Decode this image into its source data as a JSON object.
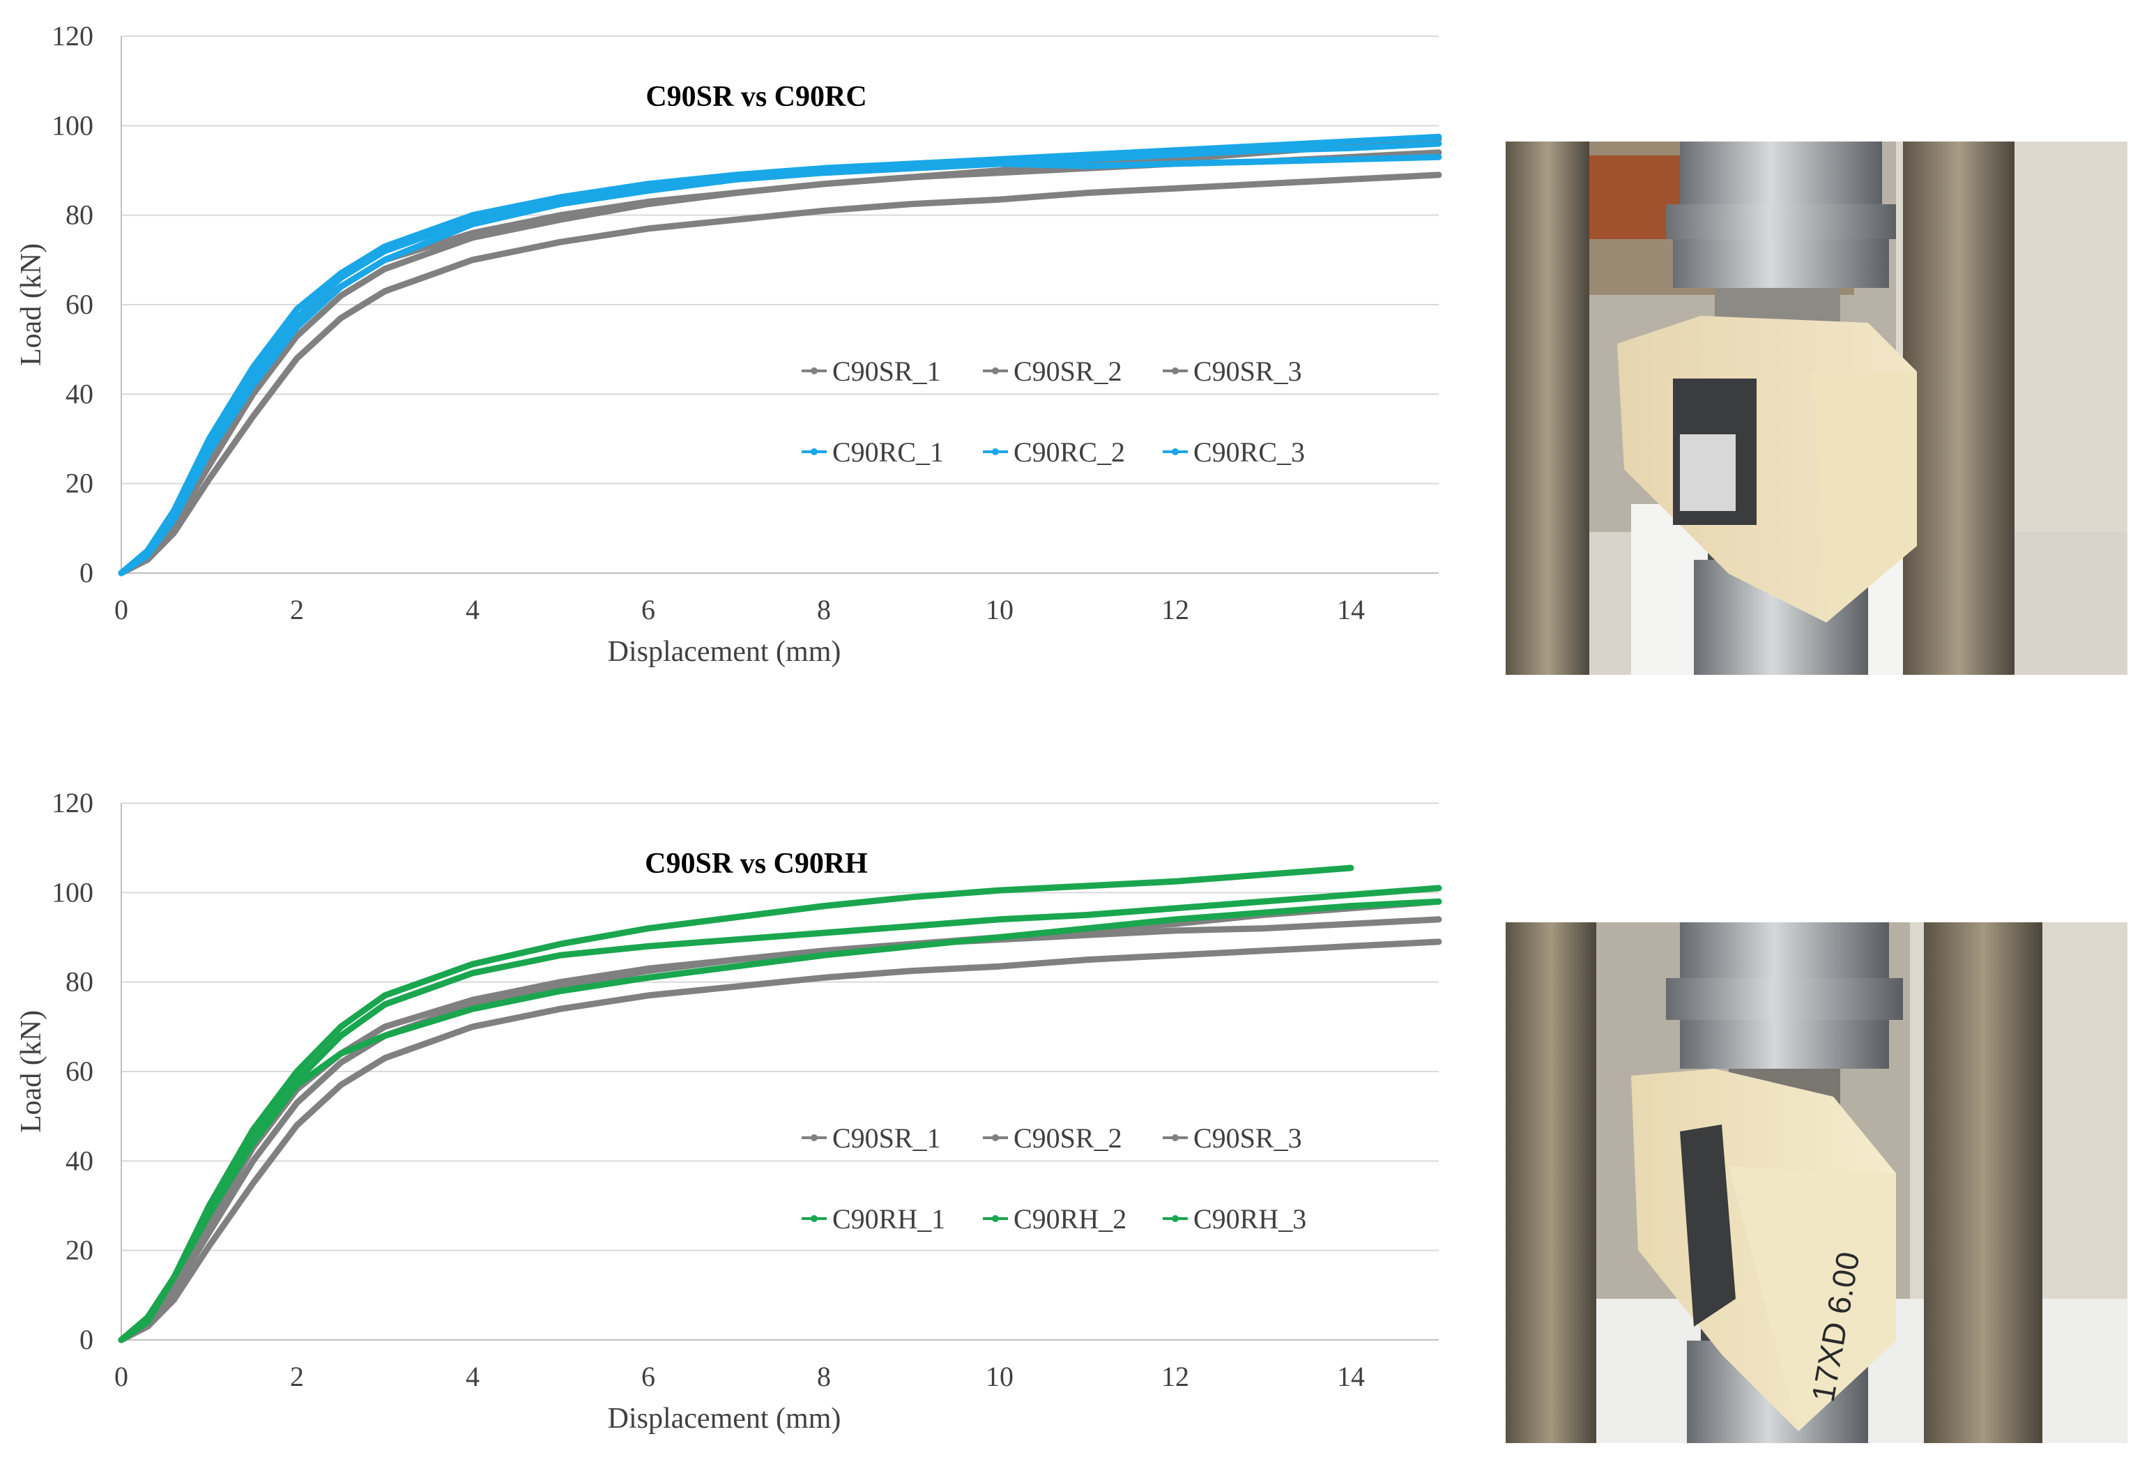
{
  "colors": {
    "gray": "#808080",
    "blue": "#1aa7e8",
    "green": "#1aa64e",
    "grid": "#d9d9d9",
    "axis": "#bfbfbf",
    "text": "#404040"
  },
  "chart_data": [
    {
      "type": "line",
      "title": "C90SR vs C90RC",
      "xlabel": "Displacement (mm)",
      "ylabel": "Load (kN)",
      "xlim": [
        0,
        15
      ],
      "ylim": [
        0,
        120
      ],
      "xticks": [
        "0",
        "2",
        "4",
        "6",
        "8",
        "10",
        "12",
        "14"
      ],
      "yticks": [
        "0",
        "20",
        "40",
        "60",
        "80",
        "100",
        "120"
      ],
      "grid": true,
      "legend_position": "center-right",
      "series": [
        {
          "name": "C90SR_1",
          "color": "gray",
          "x": [
            0,
            0.3,
            0.6,
            1,
            1.5,
            2,
            2.5,
            3,
            4,
            5,
            6,
            7,
            8,
            9,
            10,
            11,
            12,
            13,
            14,
            15
          ],
          "y": [
            0,
            3,
            9,
            21,
            35,
            48,
            57,
            63,
            70,
            74,
            77,
            79,
            81,
            82.5,
            83.5,
            85,
            86,
            87,
            88,
            89
          ]
        },
        {
          "name": "C90SR_2",
          "color": "gray",
          "x": [
            0,
            0.3,
            0.6,
            1,
            1.5,
            2,
            2.5,
            3,
            4,
            5,
            6,
            7,
            8,
            9,
            10,
            11,
            12,
            13,
            14,
            15
          ],
          "y": [
            0,
            4,
            12,
            26,
            43,
            56,
            64,
            70,
            76,
            80,
            83,
            85,
            87,
            88.5,
            89.5,
            90.5,
            91.5,
            92,
            93,
            94
          ]
        },
        {
          "name": "C90SR_3",
          "color": "gray",
          "x": [
            0,
            0.3,
            0.6,
            1,
            1.5,
            2,
            2.5,
            3,
            4,
            5,
            6,
            7,
            8,
            9,
            10,
            11,
            12,
            13,
            14,
            15
          ],
          "y": [
            0,
            4,
            11,
            24,
            40,
            53,
            62,
            68,
            75,
            79,
            82.5,
            85,
            87,
            88.5,
            90,
            91.5,
            92.5,
            94,
            95.5,
            97
          ]
        },
        {
          "name": "C90RC_1",
          "color": "blue",
          "x": [
            0,
            0.3,
            0.6,
            1,
            1.5,
            2,
            2.5,
            3,
            4,
            5,
            6,
            7,
            8,
            9,
            10,
            11,
            12,
            13,
            14,
            15
          ],
          "y": [
            0,
            5,
            14,
            30,
            46,
            59,
            67,
            73,
            80,
            84,
            87,
            89,
            90.5,
            91.5,
            92.5,
            93.5,
            94.5,
            95.5,
            96.5,
            97.5
          ]
        },
        {
          "name": "C90RC_2",
          "color": "blue",
          "x": [
            0,
            0.3,
            0.6,
            1,
            1.5,
            2,
            2.5,
            3,
            4,
            5,
            6,
            7,
            8,
            9,
            10,
            11,
            12,
            13,
            14,
            15
          ],
          "y": [
            0,
            4,
            13,
            28,
            44,
            57,
            66,
            72,
            79,
            83,
            86,
            88,
            89.5,
            90.5,
            91.5,
            91,
            91.5,
            92,
            92.5,
            93
          ]
        },
        {
          "name": "C90RC_3",
          "color": "blue",
          "x": [
            0,
            0.3,
            0.6,
            1,
            1.5,
            2,
            2.5,
            3,
            4,
            5,
            6,
            7,
            8,
            9,
            10,
            11,
            12,
            13,
            14,
            15
          ],
          "y": [
            0,
            4,
            12,
            27,
            42,
            55,
            64,
            70,
            78,
            82.5,
            85.5,
            88,
            89.5,
            90.5,
            91.5,
            92.5,
            93.5,
            94.5,
            95,
            96
          ]
        }
      ]
    },
    {
      "type": "line",
      "title": "C90SR vs C90RH",
      "xlabel": "Displacement (mm)",
      "ylabel": "Load (kN)",
      "xlim": [
        0,
        15
      ],
      "ylim": [
        0,
        120
      ],
      "xticks": [
        "0",
        "2",
        "4",
        "6",
        "8",
        "10",
        "12",
        "14"
      ],
      "yticks": [
        "0",
        "20",
        "40",
        "60",
        "80",
        "100",
        "120"
      ],
      "grid": true,
      "legend_position": "center-right",
      "series": [
        {
          "name": "C90SR_1",
          "color": "gray",
          "x": [
            0,
            0.3,
            0.6,
            1,
            1.5,
            2,
            2.5,
            3,
            4,
            5,
            6,
            7,
            8,
            9,
            10,
            11,
            12,
            13,
            14,
            15
          ],
          "y": [
            0,
            3,
            9,
            21,
            35,
            48,
            57,
            63,
            70,
            74,
            77,
            79,
            81,
            82.5,
            83.5,
            85,
            86,
            87,
            88,
            89
          ]
        },
        {
          "name": "C90SR_2",
          "color": "gray",
          "x": [
            0,
            0.3,
            0.6,
            1,
            1.5,
            2,
            2.5,
            3,
            4,
            5,
            6,
            7,
            8,
            9,
            10,
            11,
            12,
            13,
            14,
            15
          ],
          "y": [
            0,
            4,
            12,
            26,
            43,
            56,
            64,
            70,
            76,
            80,
            83,
            85,
            87,
            88.5,
            89.5,
            90.5,
            91.5,
            92,
            93,
            94
          ]
        },
        {
          "name": "C90SR_3",
          "color": "gray",
          "x": [
            0,
            0.3,
            0.6,
            1,
            1.5,
            2,
            2.5,
            3,
            4,
            5,
            6,
            7,
            8,
            9,
            10,
            11,
            12,
            13,
            14,
            15
          ],
          "y": [
            0,
            4,
            11,
            24,
            40,
            53,
            62,
            68,
            75,
            79,
            82.5,
            85,
            87,
            88.5,
            90,
            91.5,
            93,
            95,
            96.5,
            98
          ]
        },
        {
          "name": "C90RH_1",
          "color": "green",
          "x": [
            0,
            0.3,
            0.6,
            1,
            1.5,
            2,
            2.5,
            3,
            4,
            5,
            6,
            7,
            8,
            9,
            10,
            11,
            12,
            13,
            14
          ],
          "y": [
            0,
            5,
            14,
            30,
            47,
            60,
            70,
            77,
            84,
            88.5,
            92,
            94.5,
            97,
            99,
            100.5,
            101.5,
            102.5,
            104,
            105.5
          ]
        },
        {
          "name": "C90RH_2",
          "color": "green",
          "x": [
            0,
            0.3,
            0.6,
            1,
            1.5,
            2,
            2.5,
            3,
            4,
            5,
            6,
            7,
            8,
            9,
            10,
            11,
            12,
            13,
            14,
            15
          ],
          "y": [
            0,
            5,
            14,
            29,
            45,
            58,
            68,
            75,
            82,
            86,
            88,
            89.5,
            91,
            92.5,
            94,
            95,
            96.5,
            98,
            99.5,
            101
          ]
        },
        {
          "name": "C90RH_3",
          "color": "green",
          "x": [
            0,
            0.3,
            0.6,
            1,
            1.5,
            2,
            2.5,
            3,
            4,
            5,
            6,
            7,
            8,
            9,
            10,
            11,
            12,
            13,
            14,
            15
          ],
          "y": [
            0,
            4,
            14,
            28,
            44,
            57,
            64,
            68,
            74,
            78,
            81,
            83.5,
            86,
            88,
            90,
            92,
            94,
            95.5,
            97,
            98
          ]
        }
      ]
    }
  ],
  "photos": [
    {
      "name": "specimen-photo-rc",
      "block_text": ""
    },
    {
      "name": "specimen-photo-rh",
      "block_text": "17XD 6.00"
    }
  ]
}
